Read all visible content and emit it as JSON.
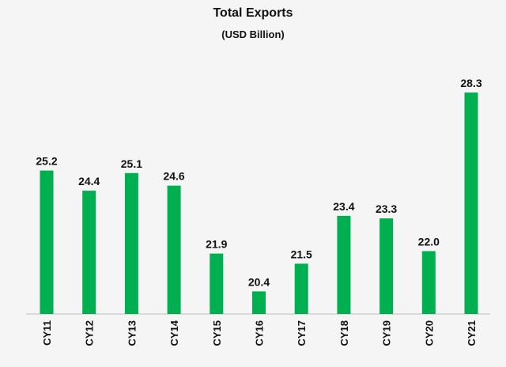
{
  "chart_data": {
    "type": "bar",
    "title": "Total Exports",
    "subtitle": "(USD Billion)",
    "xlabel": "",
    "ylabel": "",
    "categories": [
      "CY11",
      "CY12",
      "CY13",
      "CY14",
      "CY15",
      "CY16",
      "CY17",
      "CY18",
      "CY19",
      "CY20",
      "CY21"
    ],
    "values": [
      25.2,
      24.4,
      25.1,
      24.6,
      21.9,
      20.4,
      21.5,
      23.4,
      23.3,
      22.0,
      28.3
    ],
    "value_labels": [
      "25.2",
      "24.4",
      "25.1",
      "24.6",
      "21.9",
      "20.4",
      "21.5",
      "23.4",
      "23.3",
      "22.0",
      "28.3"
    ],
    "ylim": [
      19.5,
      28.3
    ],
    "grid": false,
    "legend": "none",
    "bar_color": "#00b050",
    "axis_color": "#bfbfbf",
    "text_color": "#111111"
  }
}
